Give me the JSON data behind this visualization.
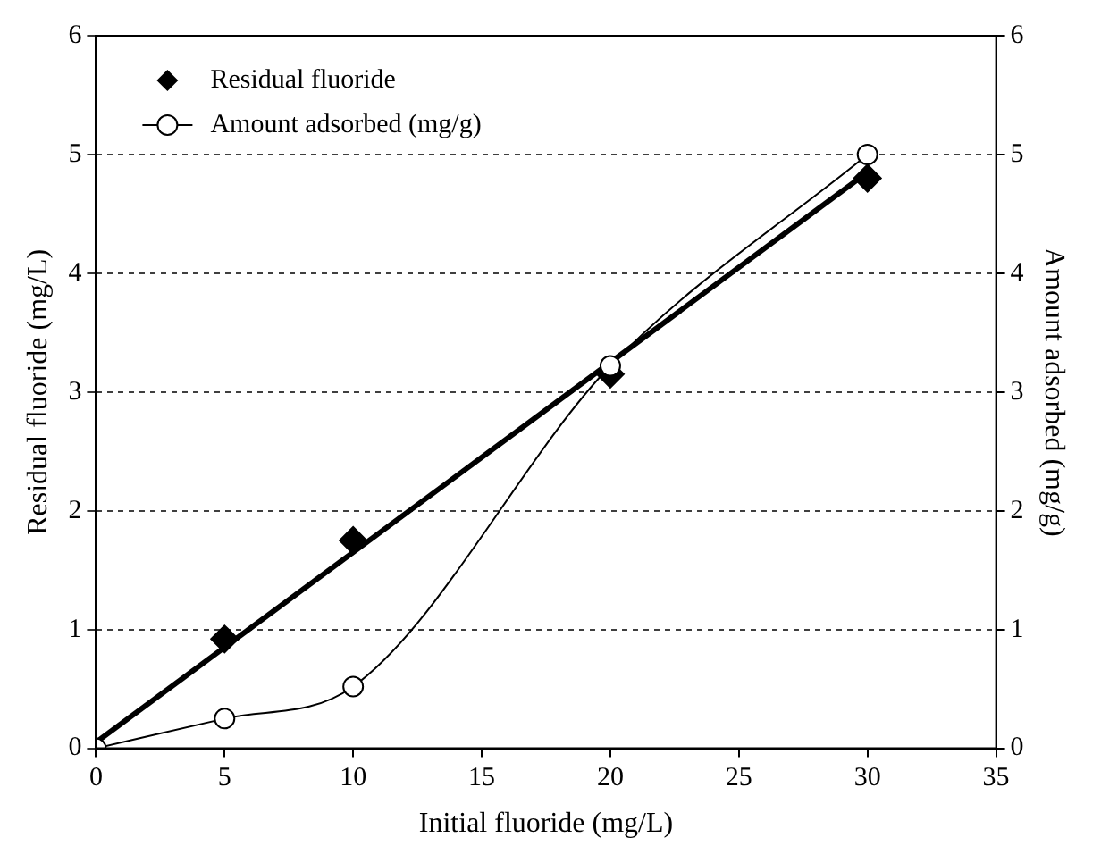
{
  "chart_data": {
    "type": "scatter",
    "xlabel": "Initial fluoride (mg/L)",
    "ylabel": "Residual fluoride (mg/L)",
    "y2label": "Amount adsorbed (mg/g)",
    "x": [
      0,
      5,
      10,
      20,
      30
    ],
    "xlim": [
      0,
      35
    ],
    "xticks": [
      0,
      5,
      10,
      15,
      20,
      25,
      30,
      35
    ],
    "ylim": [
      0,
      6
    ],
    "yticks": [
      0,
      1,
      2,
      3,
      4,
      5,
      6
    ],
    "y2lim": [
      0,
      6
    ],
    "y2ticks": [
      0,
      1,
      2,
      3,
      4,
      5,
      6
    ],
    "grid": "y",
    "legend": "top left",
    "series": [
      {
        "name": "Residual fluoride",
        "type": "scatter",
        "marker": "diamond",
        "color": "#000000",
        "values": [
          null,
          0.92,
          1.75,
          3.15,
          4.8
        ]
      },
      {
        "name": "Amount adsorbed (mg/g)",
        "type": "line",
        "marker": "circle",
        "axis": "y2",
        "color": "#000000",
        "values": [
          0,
          0.25,
          0.52,
          3.22,
          5.0
        ]
      },
      {
        "type": "line",
        "marker": "none",
        "color": "#000000",
        "x": [
          0,
          30
        ],
        "values": [
          0.05,
          4.85
        ]
      }
    ]
  }
}
